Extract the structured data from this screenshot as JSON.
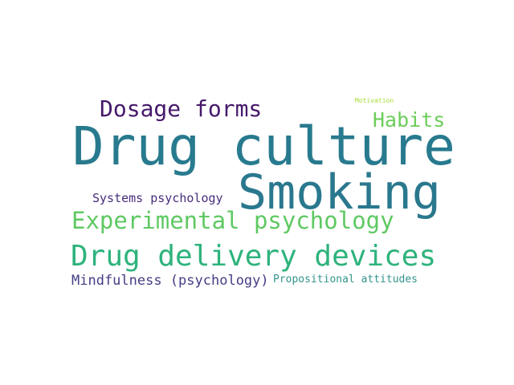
{
  "wordcloud": {
    "words": [
      {
        "text": "Drug culture",
        "color": "#287a8e"
      },
      {
        "text": "Smoking",
        "color": "#2a788e"
      },
      {
        "text": "Drug delivery devices",
        "color": "#2eb37c"
      },
      {
        "text": "Experimental psychology",
        "color": "#5ec962"
      },
      {
        "text": "Dosage forms",
        "color": "#46196b"
      },
      {
        "text": "Habits",
        "color": "#6ccd5a"
      },
      {
        "text": "Mindfulness (psychology)",
        "color": "#433e85"
      },
      {
        "text": "Systems psychology",
        "color": "#472d7b"
      },
      {
        "text": "Propositional attitudes",
        "color": "#33948c"
      },
      {
        "text": "Motivation",
        "color": "#a8db34"
      }
    ]
  }
}
